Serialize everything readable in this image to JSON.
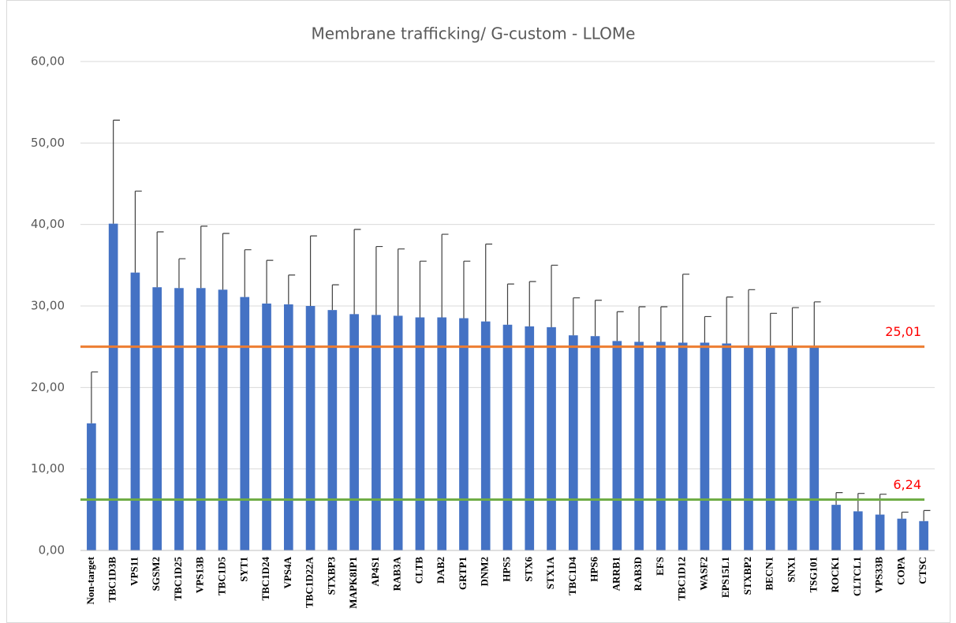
{
  "chart_data": {
    "type": "bar",
    "title": "Membrane trafficking/ G-custom - LLOMe",
    "categories": [
      "Non-target",
      "TBC1D3B",
      "VPS11",
      "SGSM2",
      "TBC1D25",
      "VPS13B",
      "TBC1D5",
      "SYT1",
      "TBC1D24",
      "VPS4A",
      "TBC1D22A",
      "STXBP3",
      "MAPK8IP1",
      "AP4S1",
      "RAB3A",
      "CLTB",
      "DAB2",
      "GRTP1",
      "DNM2",
      "HPS5",
      "STX6",
      "STX1A",
      "TBC1D4",
      "HPS6",
      "ARRB1",
      "RAB3D",
      "EFS",
      "TBC1D12",
      "WASF2",
      "EPS15L1",
      "STXBP2",
      "BECN1",
      "SNX1",
      "TSG101",
      "ROCK1",
      "CLTCL1",
      "VPS33B",
      "COPA",
      "CTSC"
    ],
    "values": [
      15.6,
      40.1,
      34.1,
      32.3,
      32.2,
      32.2,
      32.0,
      31.1,
      30.3,
      30.2,
      30.0,
      29.5,
      29.0,
      28.9,
      28.8,
      28.6,
      28.6,
      28.5,
      28.1,
      27.7,
      27.5,
      27.4,
      26.4,
      26.3,
      25.7,
      25.6,
      25.6,
      25.5,
      25.5,
      25.4,
      25.0,
      25.0,
      25.0,
      25.0,
      5.6,
      4.8,
      4.4,
      3.9,
      3.6
    ],
    "errors": [
      6.3,
      12.7,
      10.0,
      6.8,
      3.6,
      7.6,
      6.9,
      5.8,
      5.3,
      3.6,
      8.6,
      3.1,
      10.4,
      8.4,
      8.2,
      6.9,
      10.2,
      7.0,
      9.5,
      5.0,
      5.5,
      7.6,
      4.6,
      4.4,
      3.6,
      4.3,
      4.3,
      8.4,
      3.2,
      5.7,
      7.0,
      4.1,
      4.8,
      5.5,
      1.5,
      2.2,
      2.5,
      0.8,
      1.3
    ],
    "color": "#4472c4",
    "reference_lines": [
      {
        "value": 25.01,
        "label": "25,01",
        "color": "#ed7d31"
      },
      {
        "value": 6.24,
        "label": "6,24",
        "color": "#70ad47"
      }
    ],
    "ylim": [
      0,
      60
    ],
    "yticks": [
      {
        "value": 0,
        "label": "0,00"
      },
      {
        "value": 10,
        "label": "10,00"
      },
      {
        "value": 20,
        "label": "20,00"
      },
      {
        "value": 30,
        "label": "30,00"
      },
      {
        "value": 40,
        "label": "40,00"
      },
      {
        "value": 50,
        "label": "50,00"
      },
      {
        "value": 60,
        "label": "60,00"
      }
    ],
    "grid": true
  }
}
